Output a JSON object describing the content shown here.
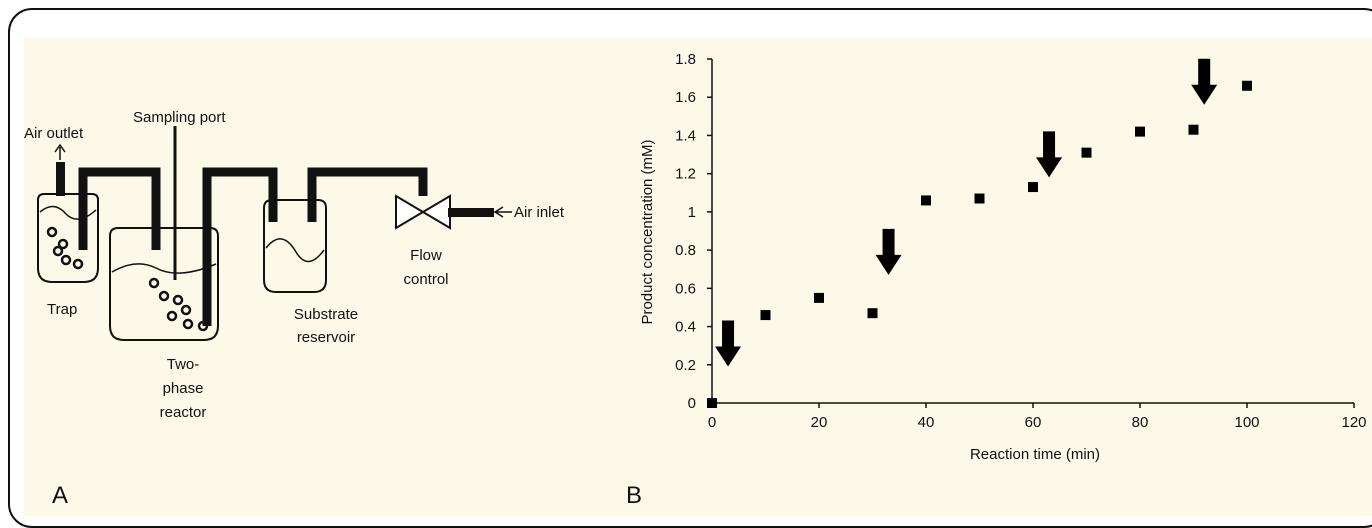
{
  "panel_a": {
    "letter": "A",
    "labels": {
      "air_outlet": "Air outlet",
      "sampling_port": "Sampling port",
      "air_inlet": "Air inlet",
      "trap": "Trap",
      "reactor_line1": "Two-",
      "reactor_line2": "phase",
      "reactor_line3": "reactor",
      "reservoir_line1": "Substrate",
      "reservoir_line2": "reservoir",
      "flow_line1": "Flow",
      "flow_line2": "control"
    }
  },
  "panel_b": {
    "letter": "B"
  },
  "chart_data": {
    "type": "scatter",
    "title": "",
    "xlabel": "Reaction time (min)",
    "ylabel": "Product concentration (mM)",
    "xlim": [
      0,
      120
    ],
    "ylim": [
      0,
      1.8
    ],
    "xticks": [
      "0",
      "20",
      "40",
      "60",
      "80",
      "100",
      "120"
    ],
    "yticks": [
      "0",
      "0.2",
      "0.4",
      "0.6",
      "0.8",
      "1",
      "1.2",
      "1.4",
      "1.6",
      "1.8"
    ],
    "grid": false,
    "marker": "square",
    "marker_color": "#000000",
    "points": [
      {
        "x": 0,
        "y": 0.0
      },
      {
        "x": 10,
        "y": 0.46
      },
      {
        "x": 20,
        "y": 0.55
      },
      {
        "x": 30,
        "y": 0.47
      },
      {
        "x": 40,
        "y": 1.06
      },
      {
        "x": 50,
        "y": 1.07
      },
      {
        "x": 60,
        "y": 1.13
      },
      {
        "x": 70,
        "y": 1.31
      },
      {
        "x": 80,
        "y": 1.42
      },
      {
        "x": 90,
        "y": 1.43
      },
      {
        "x": 100,
        "y": 1.66
      }
    ],
    "annotations": [
      {
        "type": "down-arrow",
        "x": 3,
        "y": 0.4
      },
      {
        "type": "down-arrow",
        "x": 33,
        "y": 0.88
      },
      {
        "type": "down-arrow",
        "x": 63,
        "y": 1.39
      },
      {
        "type": "down-arrow",
        "x": 92,
        "y": 1.77
      }
    ]
  }
}
